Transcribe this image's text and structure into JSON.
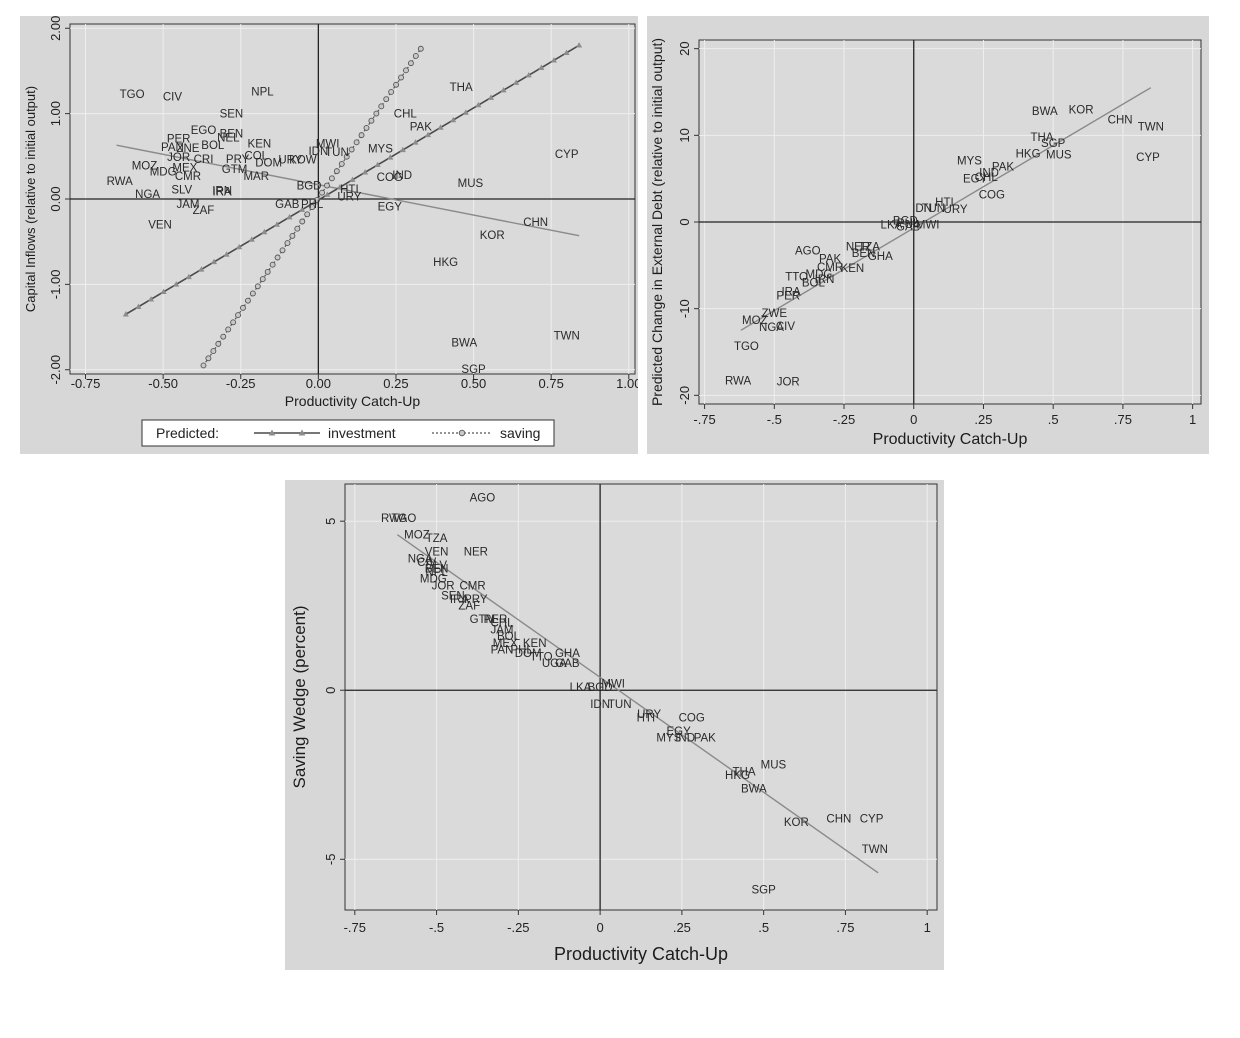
{
  "chart_data": [
    {
      "type": "scatter",
      "xlabel": "Productivity Catch-Up",
      "ylabel": "Capital Inflows (relative to initial output)",
      "xlim": [
        -0.8,
        1.02
      ],
      "ylim": [
        -2.05,
        2.05
      ],
      "x_ticks": [
        "-0.75",
        "-0.50",
        "-0.25",
        "0.00",
        "0.25",
        "0.50",
        "0.75",
        "1.00"
      ],
      "x_tick_values": [
        -0.75,
        -0.5,
        -0.25,
        0,
        0.25,
        0.5,
        0.75,
        1.0
      ],
      "y_ticks": [
        "-2.00",
        "-1.00",
        "0.00",
        "1.00",
        "2.00"
      ],
      "y_tick_values": [
        -2,
        -1,
        0,
        1,
        2
      ],
      "grid": true,
      "legend": {
        "title": "Predicted:",
        "entries": [
          "investment",
          "saving"
        ],
        "placement": "bottom"
      },
      "series": [
        {
          "name": "investment",
          "style": "line-triangle",
          "x": [
            -0.62,
            0.84
          ],
          "y": [
            -1.35,
            1.8
          ]
        },
        {
          "name": "saving",
          "style": "dotted-circle",
          "x": [
            -0.37,
            0.33
          ],
          "y": [
            -1.95,
            1.76
          ]
        }
      ],
      "fit_line": {
        "x": [
          -0.65,
          0.84
        ],
        "y": [
          0.63,
          -0.43
        ]
      },
      "points": [
        {
          "label": "TGO",
          "x": -0.6,
          "y": 1.23
        },
        {
          "label": "CIV",
          "x": -0.47,
          "y": 1.2
        },
        {
          "label": "NPL",
          "x": -0.18,
          "y": 1.26
        },
        {
          "label": "THA",
          "x": 0.46,
          "y": 1.31
        },
        {
          "label": "SEN",
          "x": -0.28,
          "y": 1.0
        },
        {
          "label": "CHL",
          "x": 0.28,
          "y": 1.0
        },
        {
          "label": "PAK",
          "x": 0.33,
          "y": 0.85
        },
        {
          "label": "EGO",
          "x": -0.37,
          "y": 0.81
        },
        {
          "label": "PER",
          "x": -0.45,
          "y": 0.71
        },
        {
          "label": "BEN",
          "x": -0.28,
          "y": 0.77
        },
        {
          "label": "NEL",
          "x": -0.29,
          "y": 0.72
        },
        {
          "label": "KEN",
          "x": -0.19,
          "y": 0.65
        },
        {
          "label": "PAN",
          "x": -0.47,
          "y": 0.61
        },
        {
          "label": "ZNE",
          "x": -0.42,
          "y": 0.6
        },
        {
          "label": "BOL",
          "x": -0.34,
          "y": 0.63
        },
        {
          "label": "MWI",
          "x": 0.03,
          "y": 0.65
        },
        {
          "label": "MYS",
          "x": 0.2,
          "y": 0.59
        },
        {
          "label": "CYP",
          "x": 0.8,
          "y": 0.53
        },
        {
          "label": "JOR",
          "x": -0.45,
          "y": 0.49
        },
        {
          "label": "CRI",
          "x": -0.37,
          "y": 0.47
        },
        {
          "label": "PRY",
          "x": -0.26,
          "y": 0.47
        },
        {
          "label": "COL",
          "x": -0.2,
          "y": 0.51
        },
        {
          "label": "IDN",
          "x": 0.0,
          "y": 0.56
        },
        {
          "label": "TUN",
          "x": 0.06,
          "y": 0.55
        },
        {
          "label": "MOZ",
          "x": -0.56,
          "y": 0.39
        },
        {
          "label": "MDG",
          "x": -0.5,
          "y": 0.32
        },
        {
          "label": "MEX",
          "x": -0.43,
          "y": 0.37
        },
        {
          "label": "GTM",
          "x": -0.27,
          "y": 0.35
        },
        {
          "label": "DOM",
          "x": -0.16,
          "y": 0.43
        },
        {
          "label": "MAR",
          "x": -0.2,
          "y": 0.27
        },
        {
          "label": "URY",
          "x": -0.09,
          "y": 0.46
        },
        {
          "label": "KOW",
          "x": -0.05,
          "y": 0.46
        },
        {
          "label": "RWA",
          "x": -0.64,
          "y": 0.21
        },
        {
          "label": "CMR",
          "x": -0.42,
          "y": 0.27
        },
        {
          "label": "IND",
          "x": 0.27,
          "y": 0.28
        },
        {
          "label": "COG",
          "x": 0.23,
          "y": 0.26
        },
        {
          "label": "MUS",
          "x": 0.49,
          "y": 0.19
        },
        {
          "label": "SLV",
          "x": -0.44,
          "y": 0.11
        },
        {
          "label": "IRA",
          "x": -0.31,
          "y": 0.09
        },
        {
          "label": "IRN",
          "x": -0.31,
          "y": 0.1
        },
        {
          "label": "NGA",
          "x": -0.55,
          "y": 0.06
        },
        {
          "label": "HTI",
          "x": 0.1,
          "y": 0.12
        },
        {
          "label": "URY",
          "x": 0.1,
          "y": 0.03
        },
        {
          "label": "BGD",
          "x": -0.03,
          "y": 0.16
        },
        {
          "label": "GAB",
          "x": -0.1,
          "y": -0.06
        },
        {
          "label": "PHL",
          "x": -0.02,
          "y": -0.06
        },
        {
          "label": "JAM",
          "x": -0.42,
          "y": -0.06
        },
        {
          "label": "ZAF",
          "x": -0.37,
          "y": -0.13
        },
        {
          "label": "EGY",
          "x": 0.23,
          "y": -0.09
        },
        {
          "label": "CHN",
          "x": 0.7,
          "y": -0.27
        },
        {
          "label": "VEN",
          "x": -0.51,
          "y": -0.3
        },
        {
          "label": "KOR",
          "x": 0.56,
          "y": -0.42
        },
        {
          "label": "HKG",
          "x": 0.41,
          "y": -0.74
        },
        {
          "label": "TWN",
          "x": 0.8,
          "y": -1.6
        },
        {
          "label": "BWA",
          "x": 0.47,
          "y": -1.68
        },
        {
          "label": "SGP",
          "x": 0.5,
          "y": -1.99
        }
      ]
    },
    {
      "type": "scatter",
      "xlabel": "Productivity Catch-Up",
      "ylabel": "Predicted Change in External Debt (relative to initial output)",
      "xlim": [
        -0.77,
        1.03
      ],
      "ylim": [
        -21,
        21
      ],
      "x_ticks": [
        "-.75",
        "-.5",
        "-.25",
        "0",
        ".25",
        ".5",
        ".75",
        "1"
      ],
      "x_tick_values": [
        -0.75,
        -0.5,
        -0.25,
        0,
        0.25,
        0.5,
        0.75,
        1
      ],
      "y_ticks": [
        "-20",
        "-10",
        "0",
        "10",
        "20"
      ],
      "y_tick_values": [
        -20,
        -10,
        0,
        10,
        20
      ],
      "grid": true,
      "fit_line": {
        "x": [
          -0.62,
          0.85
        ],
        "y": [
          -12.5,
          15.5
        ]
      },
      "points": [
        {
          "label": "BWA",
          "x": 0.47,
          "y": 12.8
        },
        {
          "label": "KOR",
          "x": 0.6,
          "y": 13.0
        },
        {
          "label": "CHN",
          "x": 0.74,
          "y": 11.8
        },
        {
          "label": "TWN",
          "x": 0.85,
          "y": 11.0
        },
        {
          "label": "THA",
          "x": 0.46,
          "y": 9.8
        },
        {
          "label": "SGP",
          "x": 0.5,
          "y": 9.1
        },
        {
          "label": "HKG",
          "x": 0.41,
          "y": 7.9
        },
        {
          "label": "MUS",
          "x": 0.52,
          "y": 7.8
        },
        {
          "label": "CYP",
          "x": 0.84,
          "y": 7.5
        },
        {
          "label": "MYS",
          "x": 0.2,
          "y": 7.1
        },
        {
          "label": "PAK",
          "x": 0.32,
          "y": 6.4
        },
        {
          "label": "IND",
          "x": 0.27,
          "y": 5.7
        },
        {
          "label": "CHL",
          "x": 0.26,
          "y": 5.2
        },
        {
          "label": "EGY",
          "x": 0.22,
          "y": 5.0
        },
        {
          "label": "COG",
          "x": 0.28,
          "y": 3.2
        },
        {
          "label": "HTI",
          "x": 0.11,
          "y": 2.3
        },
        {
          "label": "URY",
          "x": 0.15,
          "y": 1.5
        },
        {
          "label": "IDN",
          "x": 0.03,
          "y": 1.6
        },
        {
          "label": "TUN",
          "x": 0.07,
          "y": 1.6
        },
        {
          "label": "BGD",
          "x": -0.03,
          "y": 0.2
        },
        {
          "label": "PHL",
          "x": -0.02,
          "y": -0.1
        },
        {
          "label": "LKA",
          "x": -0.08,
          "y": -0.3
        },
        {
          "label": "MWI",
          "x": 0.05,
          "y": -0.3
        },
        {
          "label": "GAB",
          "x": -0.02,
          "y": -0.5
        },
        {
          "label": "AGO",
          "x": -0.38,
          "y": -3.3
        },
        {
          "label": "NER",
          "x": -0.2,
          "y": -2.8
        },
        {
          "label": "TZA",
          "x": -0.16,
          "y": -2.8
        },
        {
          "label": "BEN",
          "x": -0.18,
          "y": -3.6
        },
        {
          "label": "PAK",
          "x": -0.3,
          "y": -4.2
        },
        {
          "label": "GHA",
          "x": -0.12,
          "y": -3.9
        },
        {
          "label": "CMR",
          "x": -0.3,
          "y": -5.2
        },
        {
          "label": "KEN",
          "x": -0.22,
          "y": -5.3
        },
        {
          "label": "MDG",
          "x": -0.34,
          "y": -6.0
        },
        {
          "label": "TTO",
          "x": -0.42,
          "y": -6.3
        },
        {
          "label": "IRN",
          "x": -0.32,
          "y": -6.6
        },
        {
          "label": "BOL",
          "x": -0.36,
          "y": -7.0
        },
        {
          "label": "PER",
          "x": -0.45,
          "y": -8.5
        },
        {
          "label": "IRA",
          "x": -0.44,
          "y": -8.0
        },
        {
          "label": "ZWE",
          "x": -0.5,
          "y": -10.5
        },
        {
          "label": "MOZ",
          "x": -0.57,
          "y": -11.3
        },
        {
          "label": "NGA",
          "x": -0.51,
          "y": -12.1
        },
        {
          "label": "CIV",
          "x": -0.46,
          "y": -12.0
        },
        {
          "label": "TGO",
          "x": -0.6,
          "y": -14.3
        },
        {
          "label": "RWA",
          "x": -0.63,
          "y": -18.3
        },
        {
          "label": "JOR",
          "x": -0.45,
          "y": -18.4
        }
      ]
    },
    {
      "type": "scatter",
      "xlabel": "Productivity Catch-Up",
      "ylabel": "Saving Wedge (percent)",
      "xlim": [
        -0.78,
        1.03
      ],
      "ylim": [
        -6.5,
        6.1
      ],
      "x_ticks": [
        "-.75",
        "-.5",
        "-.25",
        "0",
        ".25",
        ".5",
        ".75",
        "1"
      ],
      "x_tick_values": [
        -0.75,
        -0.5,
        -0.25,
        0,
        0.25,
        0.5,
        0.75,
        1
      ],
      "y_ticks": [
        "-5",
        "0",
        "5"
      ],
      "y_tick_values": [
        -5,
        0,
        5
      ],
      "grid": true,
      "fit_line": {
        "x": [
          -0.62,
          0.85
        ],
        "y": [
          4.6,
          -5.4
        ]
      },
      "points": [
        {
          "label": "AGO",
          "x": -0.36,
          "y": 5.7
        },
        {
          "label": "RWA",
          "x": -0.63,
          "y": 5.1
        },
        {
          "label": "TGO",
          "x": -0.6,
          "y": 5.1
        },
        {
          "label": "MOZ",
          "x": -0.56,
          "y": 4.6
        },
        {
          "label": "TZA",
          "x": -0.5,
          "y": 4.5
        },
        {
          "label": "NER",
          "x": -0.38,
          "y": 4.1
        },
        {
          "label": "VEN",
          "x": -0.5,
          "y": 4.1
        },
        {
          "label": "NGA",
          "x": -0.55,
          "y": 3.9
        },
        {
          "label": "CIV",
          "x": -0.53,
          "y": 3.8
        },
        {
          "label": "SLV",
          "x": -0.5,
          "y": 3.7
        },
        {
          "label": "BEN",
          "x": -0.5,
          "y": 3.6
        },
        {
          "label": "NPL",
          "x": -0.5,
          "y": 3.5
        },
        {
          "label": "MDG",
          "x": -0.51,
          "y": 3.3
        },
        {
          "label": "JOR",
          "x": -0.48,
          "y": 3.1
        },
        {
          "label": "CMR",
          "x": -0.39,
          "y": 3.1
        },
        {
          "label": "SEN",
          "x": -0.45,
          "y": 2.8
        },
        {
          "label": "IRA",
          "x": -0.43,
          "y": 2.7
        },
        {
          "label": "PRY",
          "x": -0.38,
          "y": 2.7
        },
        {
          "label": "ZAF",
          "x": -0.4,
          "y": 2.5
        },
        {
          "label": "GTM",
          "x": -0.36,
          "y": 2.1
        },
        {
          "label": "PER",
          "x": -0.32,
          "y": 2.1
        },
        {
          "label": "CHL",
          "x": -0.3,
          "y": 2.0
        },
        {
          "label": "JAM",
          "x": -0.3,
          "y": 1.8
        },
        {
          "label": "BOL",
          "x": -0.28,
          "y": 1.6
        },
        {
          "label": "MEX",
          "x": -0.29,
          "y": 1.4
        },
        {
          "label": "PAN",
          "x": -0.3,
          "y": 1.2
        },
        {
          "label": "KEN",
          "x": -0.2,
          "y": 1.4
        },
        {
          "label": "DOM",
          "x": -0.22,
          "y": 1.1
        },
        {
          "label": "PHL",
          "x": -0.24,
          "y": 1.2
        },
        {
          "label": "GHA",
          "x": -0.1,
          "y": 1.1
        },
        {
          "label": "TTO",
          "x": -0.18,
          "y": 1.0
        },
        {
          "label": "UGA",
          "x": -0.14,
          "y": 0.8
        },
        {
          "label": "GAB",
          "x": -0.1,
          "y": 0.8
        },
        {
          "label": "LKA",
          "x": -0.06,
          "y": 0.1
        },
        {
          "label": "BGD",
          "x": 0.0,
          "y": 0.1
        },
        {
          "label": "MWI",
          "x": 0.04,
          "y": 0.2
        },
        {
          "label": "IDN",
          "x": 0.0,
          "y": -0.4
        },
        {
          "label": "TUN",
          "x": 0.06,
          "y": -0.4
        },
        {
          "label": "URY",
          "x": 0.15,
          "y": -0.7
        },
        {
          "label": "HTI",
          "x": 0.14,
          "y": -0.8
        },
        {
          "label": "COG",
          "x": 0.28,
          "y": -0.8
        },
        {
          "label": "EGY",
          "x": 0.24,
          "y": -1.2
        },
        {
          "label": "IND",
          "x": 0.26,
          "y": -1.4
        },
        {
          "label": "PAK",
          "x": 0.32,
          "y": -1.4
        },
        {
          "label": "MYS",
          "x": 0.21,
          "y": -1.4
        },
        {
          "label": "MUS",
          "x": 0.53,
          "y": -2.2
        },
        {
          "label": "THA",
          "x": 0.44,
          "y": -2.4
        },
        {
          "label": "HKG",
          "x": 0.42,
          "y": -2.5
        },
        {
          "label": "BWA",
          "x": 0.47,
          "y": -2.9
        },
        {
          "label": "KOR",
          "x": 0.6,
          "y": -3.9
        },
        {
          "label": "CHN",
          "x": 0.73,
          "y": -3.8
        },
        {
          "label": "CYP",
          "x": 0.83,
          "y": -3.8
        },
        {
          "label": "TWN",
          "x": 0.84,
          "y": -4.7
        },
        {
          "label": "SGP",
          "x": 0.5,
          "y": -5.9
        }
      ]
    }
  ]
}
